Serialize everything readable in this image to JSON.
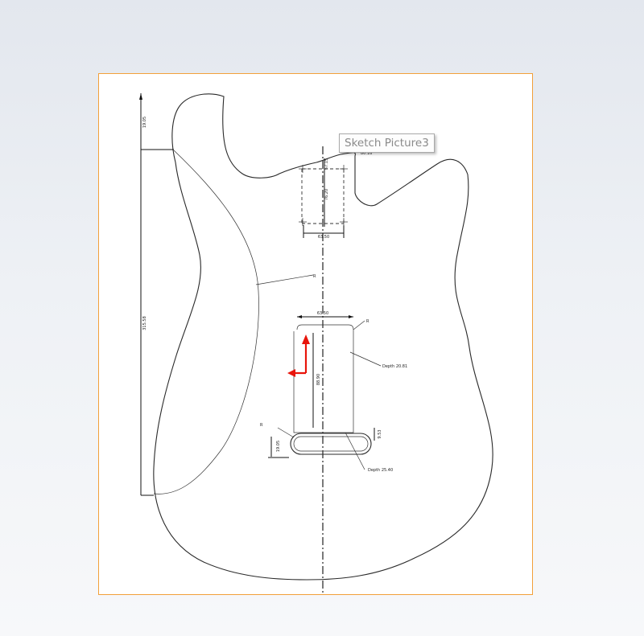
{
  "tooltip": {
    "text": "Sketch Picture3"
  },
  "dimensions": {
    "upper_height": "19.05",
    "body_height": "315.58",
    "cavity_top": "57.15",
    "cavity_side": "76.20",
    "cavity_bottom": "63.50",
    "small_label": "80.16",
    "contour_radius": "R",
    "pickup_width": "63.50",
    "pickup_corner": "R",
    "pickup_depth_label": "Depth 20.81",
    "pickup_length": "88.90",
    "bottom_radius": "R",
    "rout_height_left": "19.05",
    "rout_height_right": "9.53",
    "rout_depth_label": "Depth 25.40"
  },
  "colors": {
    "frame_border": "#f2a03a",
    "triad_red": "#e8150b"
  },
  "icons": {
    "origin": "origin-triad-icon"
  }
}
